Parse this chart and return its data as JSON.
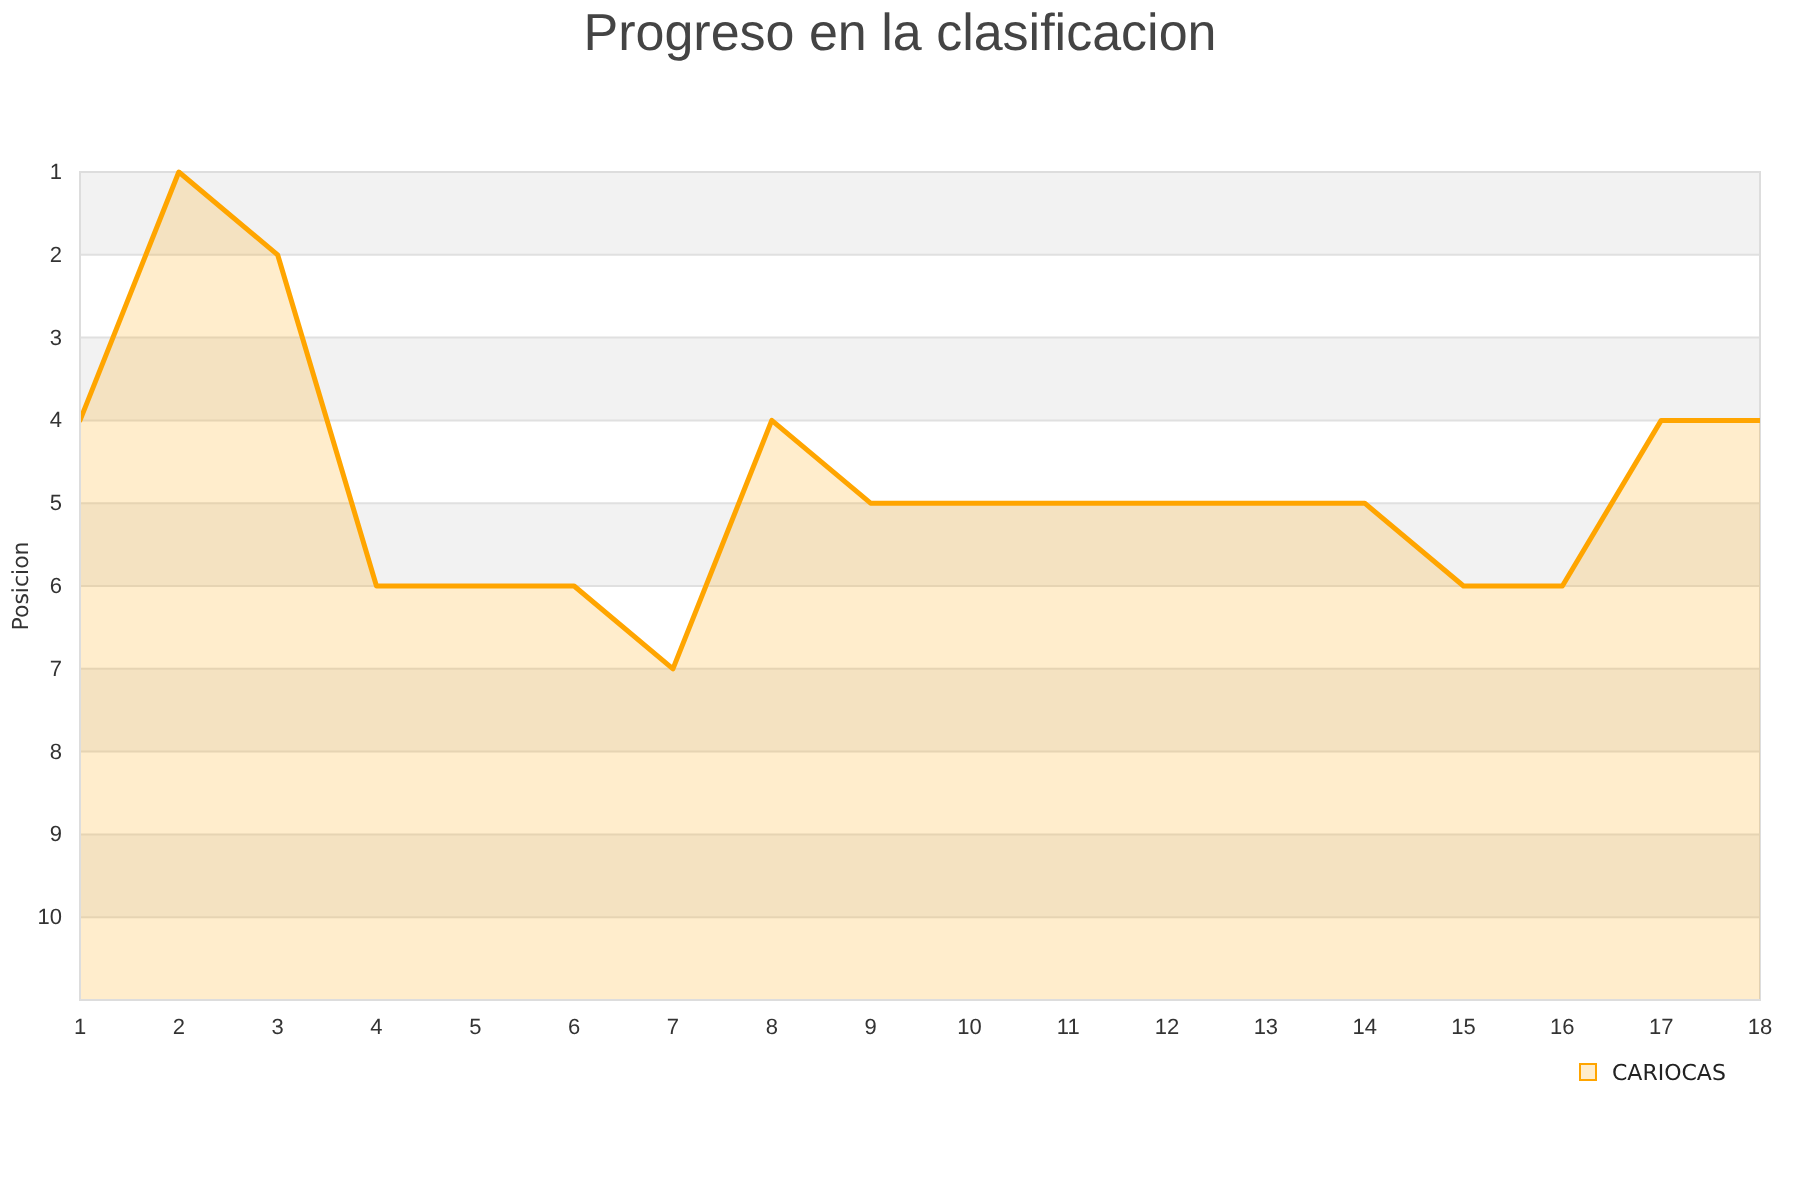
{
  "chart_data": {
    "type": "area",
    "title": "Progreso en la clasificacion",
    "ylabel": "Posicion",
    "x": [
      1,
      2,
      3,
      4,
      5,
      6,
      7,
      8,
      9,
      10,
      11,
      12,
      13,
      14,
      15,
      16,
      17,
      18
    ],
    "series": [
      {
        "name": "CARIOCAS",
        "color": "#ffa500",
        "values": [
          4,
          1,
          2,
          6,
          6,
          6,
          7,
          4,
          5,
          5,
          5,
          5,
          5,
          5,
          6,
          6,
          4,
          4
        ]
      }
    ],
    "xlim": [
      1,
      18
    ],
    "xticks": [
      1,
      2,
      3,
      4,
      5,
      6,
      7,
      8,
      9,
      10,
      11,
      12,
      13,
      14,
      15,
      16,
      17,
      18
    ],
    "ylim": [
      11,
      1
    ],
    "yticks": [
      1,
      2,
      3,
      4,
      5,
      6,
      7,
      8,
      9,
      10
    ],
    "grid": "y",
    "legend": "bottom right"
  }
}
